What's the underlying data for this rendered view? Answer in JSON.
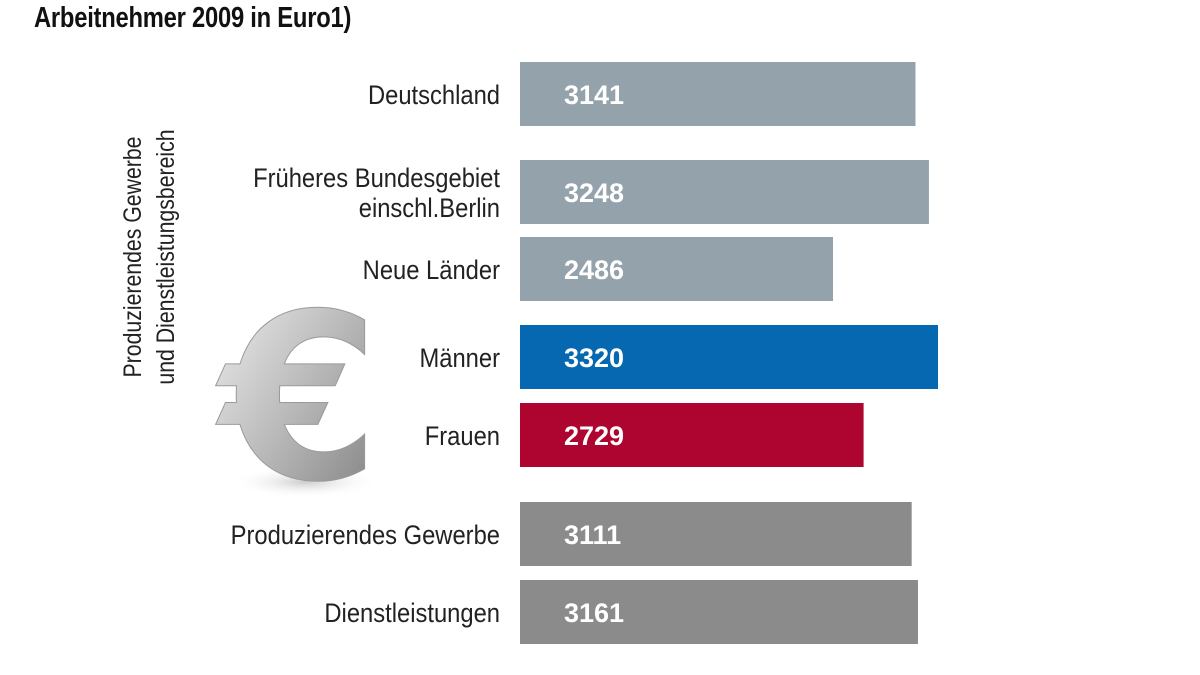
{
  "chart_data": {
    "type": "bar",
    "orientation": "horizontal",
    "title": "Arbeitnehmer 2009 in Euro1)",
    "side_label": [
      "Produzierendes Gewerbe",
      "und Dienstleistungsbereich"
    ],
    "categories": [
      "Deutschland",
      "Früheres Bundesgebiet einschl.Berlin",
      "Neue Länder",
      "Männer",
      "Frauen",
      "Produzierendes Gewerbe",
      "Dienstleistungen"
    ],
    "category_lines": [
      [
        "Deutschland"
      ],
      [
        "Früheres Bundesgebiet",
        "einschl.Berlin"
      ],
      [
        "Neue Länder"
      ],
      [
        "Männer"
      ],
      [
        "Frauen"
      ],
      [
        "Produzierendes Gewerbe"
      ],
      [
        "Dienstleistungen"
      ]
    ],
    "values": [
      3141,
      3248,
      2486,
      3320,
      2729,
      3111,
      3161
    ],
    "colors": [
      "#94a2ac",
      "#94a2ac",
      "#94a2ac",
      "#0568b0",
      "#ae0530",
      "#8b8b8b",
      "#8b8b8b"
    ],
    "xlim": [
      0,
      3320
    ],
    "grid": false,
    "legend": "none",
    "decoration": "euro-symbol"
  }
}
